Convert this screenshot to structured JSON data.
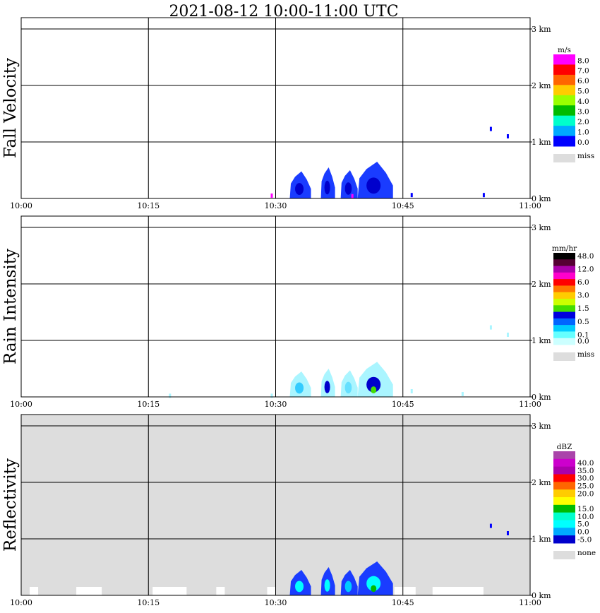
{
  "title": "2021-08-12   10:00-11:00 UTC",
  "chart_data": [
    {
      "type": "heatmap",
      "id": "fall-velocity",
      "ylabel": "Fall Velocity",
      "x_ticks": [
        "10:00",
        "10:15",
        "10:30",
        "10:45",
        "11:00"
      ],
      "xlim": [
        "10:00",
        "11:00"
      ],
      "height_ticks": [
        "0 km",
        "1 km",
        "2 km",
        "3 km"
      ],
      "ylim_km": [
        0,
        3.2
      ],
      "grid": true,
      "background": "#ffffff",
      "legend": {
        "unit": "m/s",
        "position": "right",
        "levels": [
          {
            "label": "8.0",
            "color": "#ff00ff"
          },
          {
            "label": "7.0",
            "color": "#ff0000"
          },
          {
            "label": "6.0",
            "color": "#ff6600"
          },
          {
            "label": "5.0",
            "color": "#ffcc00"
          },
          {
            "label": "4.0",
            "color": "#99ff00"
          },
          {
            "label": "3.0",
            "color": "#00bb00"
          },
          {
            "label": "2.0",
            "color": "#00ffcc"
          },
          {
            "label": "1.0",
            "color": "#00aaff"
          },
          {
            "label": "0.0",
            "color": "#0000ff"
          }
        ],
        "missing": {
          "label": "miss",
          "color": "#dddddd"
        }
      },
      "echo_cells": [
        {
          "start": "10:31:40",
          "end": "10:34:10",
          "base_km": 0.0,
          "top_km": 0.48,
          "color": "#1a3cff",
          "core_color": "#0000cc"
        },
        {
          "start": "10:35:20",
          "end": "10:37:00",
          "base_km": 0.0,
          "top_km": 0.55,
          "color": "#1a3cff",
          "core_color": "#0000cc"
        },
        {
          "start": "10:37:40",
          "end": "10:39:40",
          "base_km": 0.0,
          "top_km": 0.5,
          "color": "#1a3cff",
          "core_color": "#0000cc"
        },
        {
          "start": "10:39:40",
          "end": "10:43:50",
          "base_km": 0.0,
          "top_km": 0.65,
          "color": "#1a3cff",
          "core_color": "#0000cc"
        }
      ],
      "specks": [
        {
          "time": "10:29:30",
          "km": 0.05,
          "color": "#ff00ff"
        },
        {
          "time": "10:39:00",
          "km": 0.04,
          "color": "#ff00ff"
        },
        {
          "time": "10:46:00",
          "km": 0.06,
          "color": "#0000ff"
        },
        {
          "time": "10:54:30",
          "km": 0.06,
          "color": "#0000ff"
        },
        {
          "time": "10:55:20",
          "km": 1.23,
          "color": "#0000ff"
        },
        {
          "time": "10:57:20",
          "km": 1.1,
          "color": "#0000ff"
        }
      ]
    },
    {
      "type": "heatmap",
      "id": "rain-intensity",
      "ylabel": "Rain Intensity",
      "x_ticks": [
        "10:00",
        "10:15",
        "10:30",
        "10:45",
        "11:00"
      ],
      "xlim": [
        "10:00",
        "11:00"
      ],
      "height_ticks": [
        "0 km",
        "1 km",
        "2 km",
        "3 km"
      ],
      "ylim_km": [
        0,
        3.2
      ],
      "grid": true,
      "background": "#ffffff",
      "legend": {
        "unit": "mm/hr",
        "position": "right",
        "levels": [
          {
            "label": "48.0",
            "color": "#000000"
          },
          {
            "label": "",
            "color": "#550033"
          },
          {
            "label": "12.0",
            "color": "#aa00aa"
          },
          {
            "label": "",
            "color": "#ff00cc"
          },
          {
            "label": "6.0",
            "color": "#ff0000"
          },
          {
            "label": "",
            "color": "#ff7700"
          },
          {
            "label": "3.0",
            "color": "#ffcc00"
          },
          {
            "label": "",
            "color": "#ccff00"
          },
          {
            "label": "1.5",
            "color": "#44dd00"
          },
          {
            "label": "",
            "color": "#0000dd"
          },
          {
            "label": "0.5",
            "color": "#0066ff"
          },
          {
            "label": "",
            "color": "#00ccff"
          },
          {
            "label": "0.1",
            "color": "#66ffff"
          },
          {
            "label": "0.0",
            "color": "#ccffff"
          }
        ],
        "missing": {
          "label": "miss",
          "color": "#dddddd"
        }
      },
      "echo_cells": [
        {
          "start": "10:31:40",
          "end": "10:34:10",
          "base_km": 0.0,
          "top_km": 0.45,
          "color": "#aaf5ff",
          "core_color": "#33ccff"
        },
        {
          "start": "10:35:20",
          "end": "10:37:00",
          "base_km": 0.0,
          "top_km": 0.5,
          "color": "#aaf5ff",
          "core_color": "#0000cc"
        },
        {
          "start": "10:37:40",
          "end": "10:39:40",
          "base_km": 0.0,
          "top_km": 0.47,
          "color": "#aaf5ff",
          "core_color": "#66e0ff"
        },
        {
          "start": "10:39:40",
          "end": "10:43:50",
          "base_km": 0.0,
          "top_km": 0.62,
          "color": "#aaf5ff",
          "core_color": "#0000cc",
          "peak_color": "#44dd00"
        }
      ],
      "specks": [
        {
          "time": "10:17:30",
          "km": 0.02,
          "color": "#aaf5ff"
        },
        {
          "time": "10:29:30",
          "km": 0.02,
          "color": "#aaf5ff"
        },
        {
          "time": "10:46:00",
          "km": 0.1,
          "color": "#aaf5ff"
        },
        {
          "time": "10:52:00",
          "km": 0.05,
          "color": "#aaf5ff"
        },
        {
          "time": "10:55:20",
          "km": 1.23,
          "color": "#aaf5ff"
        },
        {
          "time": "10:57:20",
          "km": 1.1,
          "color": "#aaf5ff"
        }
      ]
    },
    {
      "type": "heatmap",
      "id": "reflectivity",
      "ylabel": "Reflectivity",
      "x_ticks": [
        "10:00",
        "10:15",
        "10:30",
        "10:45",
        "11:00"
      ],
      "xlim": [
        "10:00",
        "11:00"
      ],
      "height_ticks": [
        "0 km",
        "1 km",
        "2 km",
        "3 km"
      ],
      "ylim_km": [
        0,
        3.2
      ],
      "grid": true,
      "background": "#dddddd",
      "legend": {
        "unit": "dBZ",
        "position": "right",
        "levels": [
          {
            "label": "",
            "color": "#aa44aa"
          },
          {
            "label": "40.0",
            "color": "#cc00cc"
          },
          {
            "label": "35.0",
            "color": "#aa00aa"
          },
          {
            "label": "30.0",
            "color": "#ff0000"
          },
          {
            "label": "25.0",
            "color": "#ff6600"
          },
          {
            "label": "20.0",
            "color": "#ffcc00"
          },
          {
            "label": "",
            "color": "#ffff00"
          },
          {
            "label": "15.0",
            "color": "#00bb00"
          },
          {
            "label": "10.0",
            "color": "#00ffcc"
          },
          {
            "label": "5.0",
            "color": "#00ffff"
          },
          {
            "label": "0.0",
            "color": "#00aaff"
          },
          {
            "label": "-5.0",
            "color": "#0000cc"
          }
        ],
        "missing": {
          "label": "none",
          "color": "#dddddd"
        }
      },
      "echo_cells": [
        {
          "start": "10:31:40",
          "end": "10:34:10",
          "base_km": 0.0,
          "top_km": 0.45,
          "color": "#1a3cff",
          "core_color": "#00ffff"
        },
        {
          "start": "10:35:20",
          "end": "10:37:00",
          "base_km": 0.0,
          "top_km": 0.5,
          "color": "#1a3cff",
          "core_color": "#00ffff"
        },
        {
          "start": "10:37:40",
          "end": "10:39:40",
          "base_km": 0.0,
          "top_km": 0.45,
          "color": "#1a3cff",
          "core_color": "#00ccff"
        },
        {
          "start": "10:39:40",
          "end": "10:43:50",
          "base_km": 0.0,
          "top_km": 0.6,
          "color": "#1a3cff",
          "core_color": "#00ffff",
          "peak_color": "#00bb00"
        }
      ],
      "specks": [
        {
          "time": "10:55:20",
          "km": 1.23,
          "color": "#0000ff"
        },
        {
          "time": "10:57:20",
          "km": 1.1,
          "color": "#0000ff"
        }
      ],
      "clear_strips": [
        {
          "start": "10:01:00",
          "end": "10:02:00"
        },
        {
          "start": "10:06:30",
          "end": "10:09:30"
        },
        {
          "start": "10:15:30",
          "end": "10:19:30"
        },
        {
          "start": "10:23:00",
          "end": "10:24:00"
        },
        {
          "start": "10:29:00",
          "end": "10:30:00"
        },
        {
          "start": "10:44:00",
          "end": "10:46:30"
        },
        {
          "start": "10:48:30",
          "end": "10:54:30"
        }
      ]
    }
  ]
}
